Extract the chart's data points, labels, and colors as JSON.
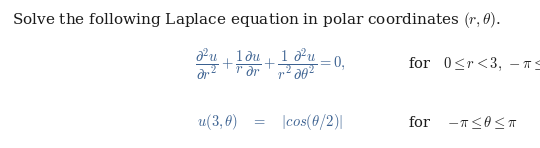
{
  "background_color": "#ffffff",
  "text_color": "#1a1a1a",
  "blue_color": "#3a6090",
  "fig_width": 5.4,
  "fig_height": 1.48,
  "dpi": 100,
  "intro_fontsize": 11.0,
  "math_fontsize": 10.5
}
